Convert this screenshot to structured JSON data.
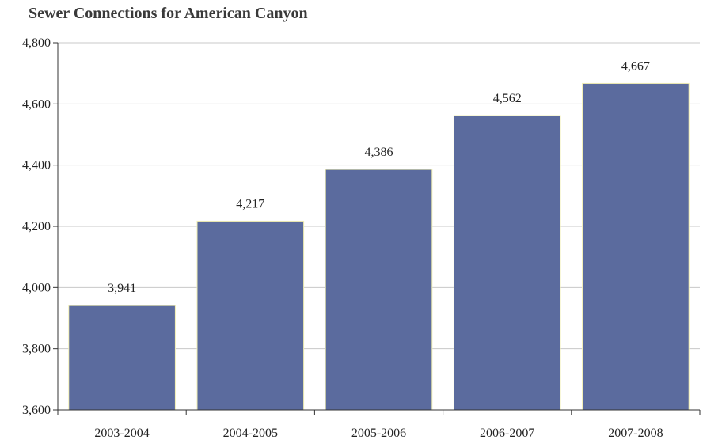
{
  "chart_data": {
    "type": "bar",
    "title": "Sewer Connections for American Canyon",
    "xlabel": "",
    "ylabel": "",
    "categories": [
      "2003-2004",
      "2004-2005",
      "2005-2006",
      "2006-2007",
      "2007-2008"
    ],
    "values": [
      3941,
      4217,
      4386,
      4562,
      4667
    ],
    "data_labels": [
      "3,941",
      "4,217",
      "4,386",
      "4,562",
      "4,667"
    ],
    "ylim": [
      3600,
      4800
    ],
    "yticks": [
      3600,
      3800,
      4000,
      4200,
      4400,
      4600,
      4800
    ],
    "ytick_labels": [
      "3,600",
      "3,800",
      "4,000",
      "4,200",
      "4,400",
      "4,600",
      "4,800"
    ],
    "grid": true,
    "legend": "none",
    "bar_color": "#5b6b9e",
    "bar_edge_color": "#f2efb3"
  }
}
